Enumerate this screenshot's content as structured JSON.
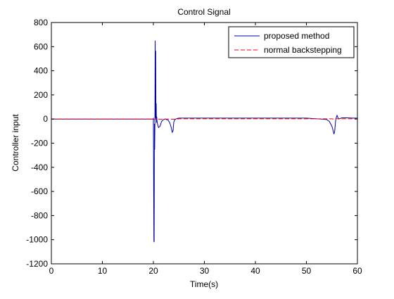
{
  "chart_data": {
    "type": "line",
    "title": "Control Signal",
    "xlabel": "Time(s)",
    "ylabel": "Controller input",
    "xlim": [
      0,
      60
    ],
    "ylim": [
      -1200,
      800
    ],
    "x_ticks": [
      0,
      10,
      20,
      30,
      40,
      50,
      60
    ],
    "y_ticks": [
      800,
      600,
      400,
      200,
      0,
      -200,
      -400,
      -600,
      -800,
      -1000,
      -1200
    ],
    "grid": false,
    "legend_position": "top-right",
    "series": [
      {
        "name": "proposed method",
        "color": "#0000aa",
        "line_style": "solid",
        "x": [
          0,
          19.9,
          20.0,
          20.1,
          20.15,
          20.2,
          20.25,
          20.3,
          20.35,
          20.4,
          20.45,
          20.5,
          20.55,
          20.6,
          20.65,
          20.7,
          20.8,
          21.0,
          21.3,
          21.6,
          22.0,
          22.3,
          22.6,
          22.9,
          23.2,
          23.5,
          23.7,
          23.85,
          24.0,
          24.2,
          24.4,
          24.7,
          25.0,
          26.0,
          27.0,
          28.0,
          30.0,
          35.0,
          40.0,
          45.0,
          50.0,
          51.0,
          52.0,
          53.0,
          54.0,
          54.5,
          55.0,
          55.2,
          55.4,
          55.55,
          55.7,
          55.8,
          56.0,
          56.3,
          56.6,
          57.0,
          58.0,
          59.0,
          60.0
        ],
        "y": [
          0,
          0,
          5,
          -1010,
          -1020,
          -40,
          -255,
          -30,
          650,
          10,
          565,
          0,
          130,
          -30,
          20,
          -10,
          -40,
          -70,
          -60,
          -20,
          -5,
          0,
          -5,
          -10,
          -30,
          -70,
          -110,
          -100,
          -25,
          -5,
          0,
          5,
          8,
          8,
          8,
          8,
          8,
          8,
          8,
          8,
          8,
          5,
          2,
          0,
          -5,
          -20,
          -60,
          -90,
          -125,
          -100,
          -25,
          5,
          30,
          0,
          5,
          10,
          10,
          8,
          8
        ]
      },
      {
        "name": "normal backstepping",
        "color": "#ff0000",
        "line_style": "dashed",
        "x": [
          0,
          20.0,
          20.3,
          20.6,
          21.0,
          21.5,
          22.0,
          23.0,
          24.0,
          25.0,
          30.0,
          40.0,
          50.0,
          55.0,
          55.5,
          56.0,
          57.0,
          60.0
        ],
        "y": [
          0,
          0,
          -5,
          5,
          0,
          -3,
          0,
          0,
          -2,
          2,
          2,
          2,
          2,
          2,
          -3,
          3,
          2,
          2
        ]
      }
    ]
  }
}
